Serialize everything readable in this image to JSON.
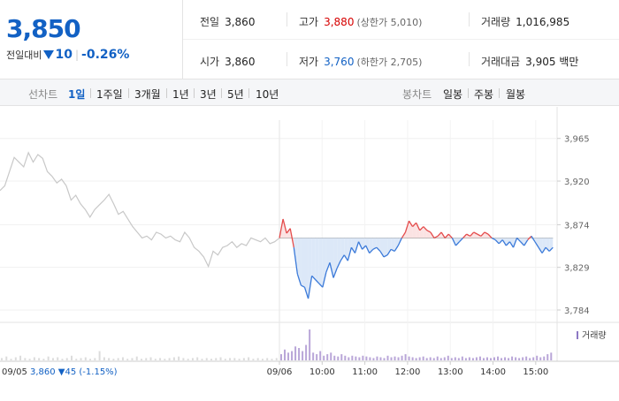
{
  "quote": {
    "price": "3,850",
    "change_label": "전일대비",
    "change_value": "10",
    "change_pct": "-0.26%"
  },
  "stats": [
    {
      "key": "전일",
      "value": "3,860",
      "sub": "",
      "tone": ""
    },
    {
      "key": "고가",
      "value": "3,880",
      "sub": "(상한가 5,010)",
      "tone": "up"
    },
    {
      "key": "거래량",
      "value": "1,016,985",
      "sub": "",
      "tone": ""
    },
    {
      "key": "시가",
      "value": "3,860",
      "sub": "",
      "tone": ""
    },
    {
      "key": "저가",
      "value": "3,760",
      "sub": "(하한가 2,705)",
      "tone": "dn"
    },
    {
      "key": "거래대금",
      "value": "3,905 백만",
      "sub": "",
      "tone": ""
    }
  ],
  "tabs": {
    "line_label": "선차트",
    "line_periods": [
      "1일",
      "1주일",
      "3개월",
      "1년",
      "3년",
      "5년",
      "10년"
    ],
    "candle_label": "봉차트",
    "candle_periods": [
      "일봉",
      "주봉",
      "월봉"
    ],
    "active": "1일"
  },
  "chart_data": {
    "type": "line",
    "ylim": [
      3770,
      3975
    ],
    "y_ticks": [
      "3,965",
      "3,920",
      "3,874",
      "3,829",
      "3,784"
    ],
    "y_tick_values": [
      3965,
      3920,
      3874,
      3829,
      3784
    ],
    "x_ticks": [
      "09/06",
      "10:00",
      "11:00",
      "12:00",
      "13:00",
      "14:00",
      "15:00"
    ],
    "reference_price": 3860,
    "volume_legend": "거래량",
    "prev_day_label": "09/05",
    "prev_day_summary": "3,860 ▼45 (-1.15%)",
    "prev_day_series": [
      3910,
      3915,
      3930,
      3945,
      3940,
      3935,
      3950,
      3940,
      3948,
      3944,
      3930,
      3925,
      3918,
      3922,
      3915,
      3900,
      3905,
      3896,
      3890,
      3882,
      3890,
      3895,
      3900,
      3906,
      3896,
      3885,
      3888,
      3880,
      3872,
      3866,
      3860,
      3862,
      3858,
      3866,
      3864,
      3860,
      3862,
      3858,
      3856,
      3866,
      3860,
      3850,
      3846,
      3840,
      3830,
      3846,
      3842,
      3850,
      3852,
      3856,
      3850,
      3854,
      3852,
      3860,
      3858,
      3856,
      3860,
      3854,
      3856,
      3860
    ],
    "today_series": [
      3860,
      3880,
      3865,
      3870,
      3850,
      3822,
      3810,
      3808,
      3796,
      3820,
      3816,
      3812,
      3808,
      3824,
      3834,
      3818,
      3828,
      3836,
      3842,
      3836,
      3850,
      3844,
      3856,
      3848,
      3852,
      3844,
      3848,
      3850,
      3846,
      3840,
      3842,
      3848,
      3846,
      3852,
      3860,
      3866,
      3878,
      3872,
      3876,
      3868,
      3872,
      3868,
      3866,
      3860,
      3862,
      3866,
      3860,
      3864,
      3860,
      3852,
      3856,
      3860,
      3864,
      3862,
      3866,
      3864,
      3862,
      3866,
      3864,
      3860,
      3858,
      3854,
      3858,
      3852,
      3856,
      3850,
      3860,
      3856,
      3852,
      3858,
      3862,
      3856,
      3850,
      3844,
      3850,
      3846,
      3850
    ],
    "prev_day_volume": [
      3,
      5,
      2,
      4,
      6,
      3,
      2,
      4,
      3,
      2,
      5,
      3,
      4,
      2,
      3,
      6,
      2,
      3,
      4,
      2,
      3,
      12,
      4,
      3,
      2,
      3,
      4,
      2,
      3,
      5,
      2,
      3,
      4,
      2,
      3,
      2,
      3,
      4,
      5,
      3,
      2,
      3,
      4,
      2,
      3,
      2,
      3,
      4,
      2,
      3,
      3,
      2,
      3,
      4,
      2,
      3,
      2,
      3,
      2,
      3
    ],
    "today_volume": [
      8,
      14,
      10,
      12,
      18,
      16,
      12,
      20,
      40,
      10,
      8,
      12,
      6,
      8,
      10,
      6,
      5,
      8,
      6,
      4,
      6,
      5,
      4,
      6,
      5,
      4,
      3,
      5,
      4,
      3,
      6,
      4,
      5,
      4,
      6,
      8,
      5,
      4,
      3,
      4,
      5,
      3,
      4,
      3,
      5,
      3,
      4,
      6,
      3,
      4,
      3,
      5,
      3,
      4,
      3,
      4,
      5,
      3,
      4,
      3,
      4,
      5,
      3,
      4,
      3,
      5,
      4,
      3,
      4,
      5,
      3,
      4,
      6,
      4,
      5,
      8,
      10
    ]
  }
}
